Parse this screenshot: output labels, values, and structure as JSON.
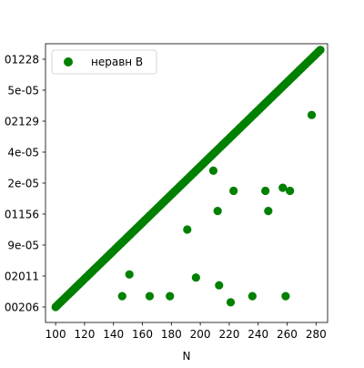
{
  "chart_data": {
    "type": "scatter",
    "title": "",
    "xlabel": "N",
    "ylabel": "",
    "xlim": [
      93,
      288
    ],
    "ylim": [
      -0.5,
      8.5
    ],
    "x_ticks": [
      100,
      120,
      140,
      160,
      180,
      200,
      220,
      240,
      260,
      280
    ],
    "y_ticks": [
      0,
      1,
      2,
      3,
      4,
      5,
      6,
      7,
      8
    ],
    "y_tick_labels": [
      "00206",
      "02011",
      "9e-05",
      "01156",
      "2e-05",
      "4e-05",
      "02129",
      "5e-05",
      "01228"
    ],
    "y_scale_note": "categorical string values, sorted lexicographically",
    "legend": {
      "position": "upper-left",
      "entries": [
        "неравн B"
      ]
    },
    "color": "#008000",
    "series": [
      {
        "name": "неравн B",
        "main_diagonal": {
          "x_start": 100,
          "x_end": 283,
          "step": 1,
          "y_start": 0,
          "y_end": 8.3
        },
        "outliers": [
          {
            "x": 146,
            "y": 0.35
          },
          {
            "x": 151,
            "y": 1.05
          },
          {
            "x": 165,
            "y": 0.35
          },
          {
            "x": 179,
            "y": 0.35
          },
          {
            "x": 191,
            "y": 2.5
          },
          {
            "x": 197,
            "y": 0.95
          },
          {
            "x": 209,
            "y": 4.4
          },
          {
            "x": 212,
            "y": 3.1
          },
          {
            "x": 213,
            "y": 0.7
          },
          {
            "x": 221,
            "y": 0.15
          },
          {
            "x": 223,
            "y": 3.75
          },
          {
            "x": 236,
            "y": 0.35
          },
          {
            "x": 245,
            "y": 3.75
          },
          {
            "x": 247,
            "y": 3.1
          },
          {
            "x": 257,
            "y": 3.85
          },
          {
            "x": 259,
            "y": 0.35
          },
          {
            "x": 262,
            "y": 3.75
          },
          {
            "x": 277,
            "y": 6.2
          }
        ]
      }
    ]
  }
}
